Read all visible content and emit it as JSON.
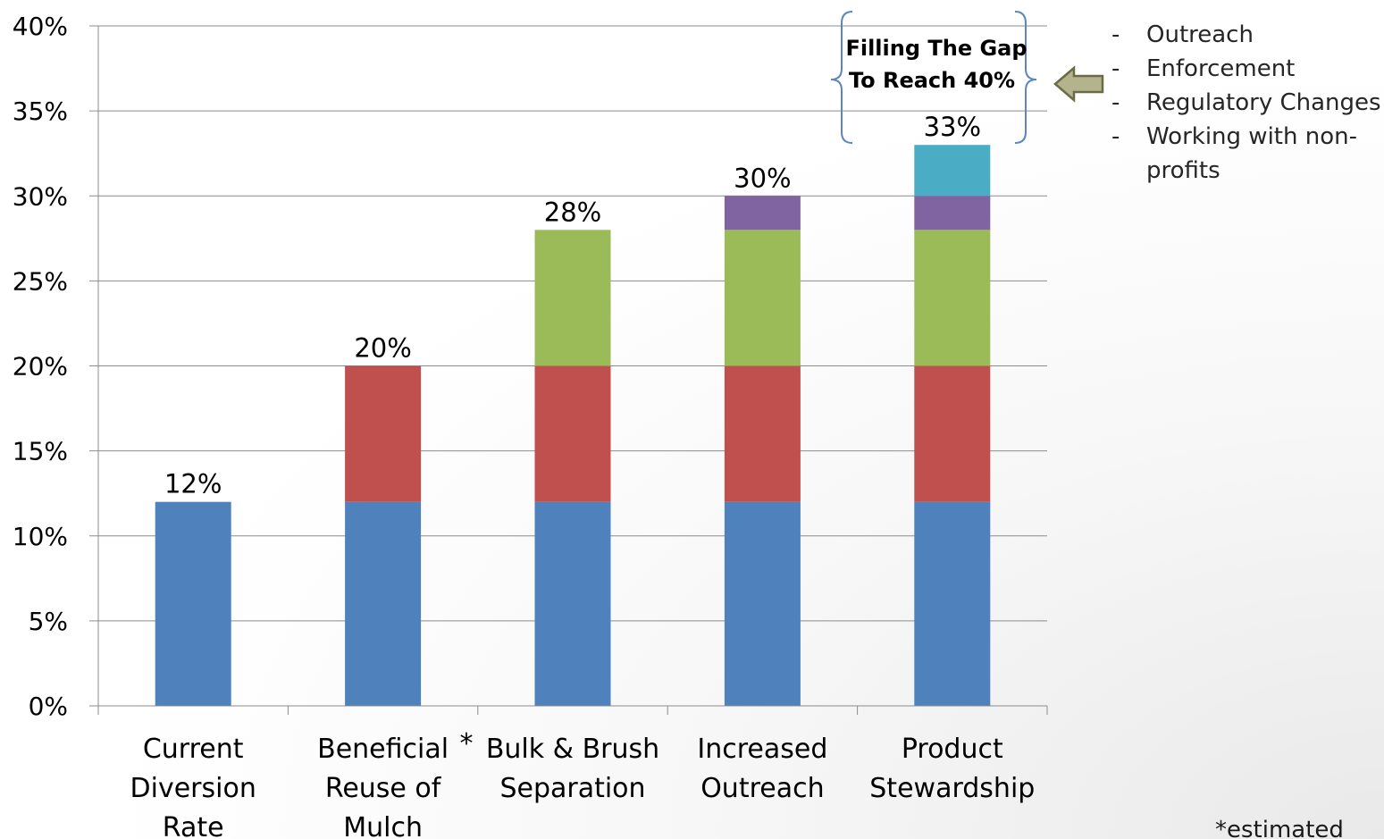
{
  "chart_data": {
    "type": "bar",
    "stacked": true,
    "categories": [
      "Current Diversion Rate",
      "Beneficial Reuse of Mulch",
      "Bulk & Brush Separation",
      "Increased Outreach",
      "Product Stewardship"
    ],
    "category_lines": [
      [
        "Current",
        "Diversion",
        "Rate"
      ],
      [
        "Beneficial",
        "Reuse of",
        "Mulch"
      ],
      [
        "Bulk & Brush",
        "Separation"
      ],
      [
        "Increased",
        "Outreach"
      ],
      [
        "Product",
        "Stewardship"
      ]
    ],
    "series": [
      {
        "color": "#4f81bd",
        "values": [
          12,
          12,
          12,
          12,
          12
        ]
      },
      {
        "color": "#c0504d",
        "values": [
          0,
          8,
          8,
          8,
          8
        ]
      },
      {
        "color": "#9bbb59",
        "values": [
          0,
          0,
          8,
          8,
          8
        ]
      },
      {
        "color": "#8064a2",
        "values": [
          0,
          0,
          0,
          2,
          2
        ]
      },
      {
        "color": "#4bacc6",
        "values": [
          0,
          0,
          0,
          0,
          3
        ]
      }
    ],
    "totals": [
      12,
      20,
      28,
      30,
      33
    ],
    "data_labels": [
      "12%",
      "20%",
      "28%",
      "30%",
      "33%"
    ],
    "ylim": [
      0,
      40
    ],
    "y_ticks": [
      0,
      5,
      10,
      15,
      20,
      25,
      30,
      35,
      40
    ],
    "y_tick_labels": [
      "0%",
      "5%",
      "10%",
      "15%",
      "20%",
      "25%",
      "30%",
      "35%",
      "40%"
    ],
    "grid": true,
    "title": "",
    "xlabel": "",
    "ylabel": "",
    "asterisk_marker": "*"
  },
  "callout": {
    "lines": [
      "Filling The Gap",
      "To Reach 40%"
    ],
    "arrow_color": "#7f7f54"
  },
  "actions": {
    "dash": "-",
    "items": [
      {
        "label": "Outreach"
      },
      {
        "label": "Enforcement"
      },
      {
        "label": "Regulatory Changes"
      },
      {
        "label": "Working with non-profits",
        "lines": [
          "Working with non-",
          "profits"
        ]
      }
    ]
  },
  "footnote": "*estimated"
}
